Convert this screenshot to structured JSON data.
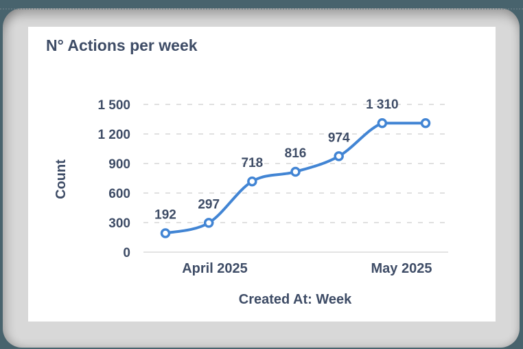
{
  "card": {
    "title": "N° Actions per week"
  },
  "chart_data": {
    "type": "line",
    "title": "N° Actions per week",
    "xlabel": "Created At: Week",
    "ylabel": "Count",
    "x_unit": "week",
    "xtick_labels": [
      "April 2025",
      "May 2025"
    ],
    "values": [
      192,
      297,
      718,
      816,
      974,
      1310,
      1310
    ],
    "point_labels": [
      "192",
      "297",
      "718",
      "816",
      "974",
      "1 310",
      ""
    ],
    "yticks": [
      0,
      300,
      600,
      900,
      1200,
      1500
    ],
    "ytick_labels_desc": [
      "1 500",
      "1 200",
      "900",
      "600",
      "300",
      "0"
    ],
    "ylim": [
      0,
      1500
    ],
    "grid": "horizontal-dashed",
    "legend": "none",
    "line_color": "#4285d4",
    "marker_style": "open-circle",
    "marker_fill": "#ffffff",
    "text_color": "#3e4c66",
    "gridline_color": "#e0e0e0",
    "background_color": "#ffffff",
    "frame_color": "#d8d8d8",
    "page_background": "#48636d"
  }
}
